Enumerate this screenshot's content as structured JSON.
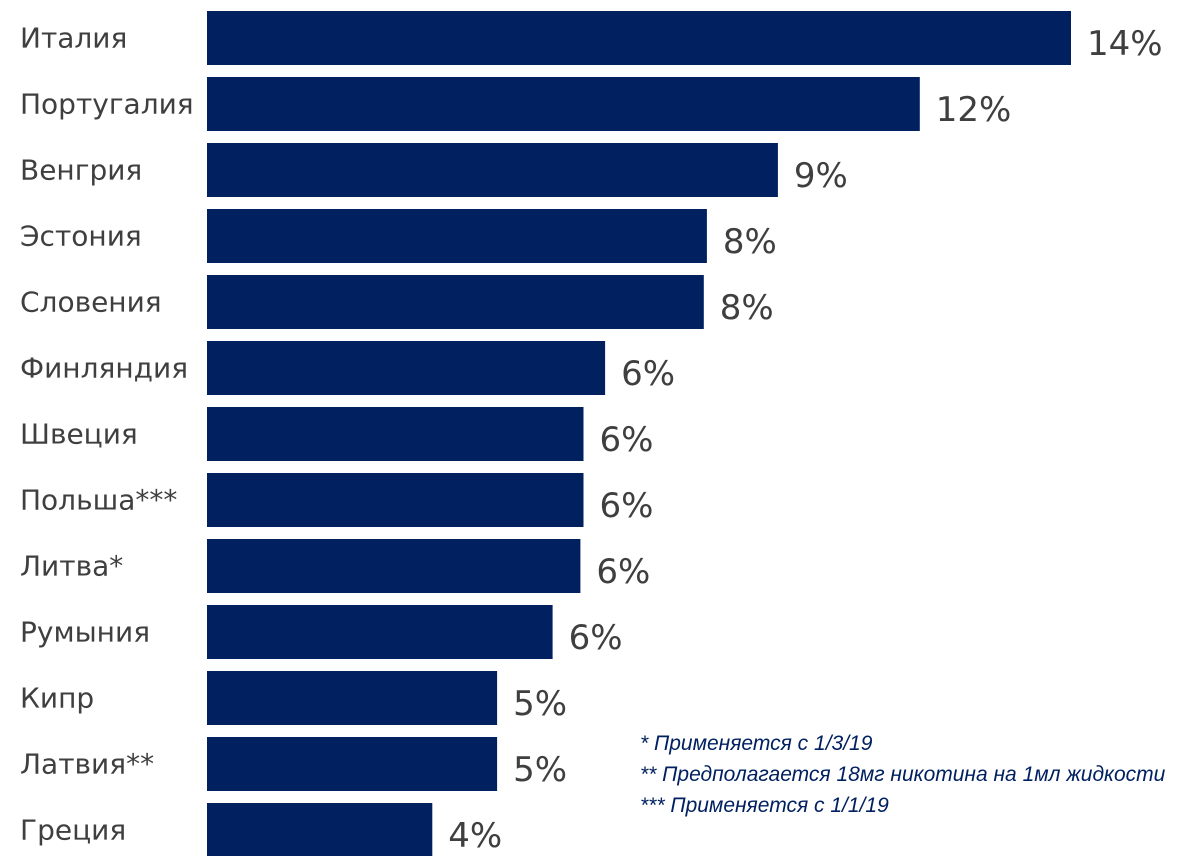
{
  "chart_data": {
    "type": "bar",
    "orientation": "horizontal",
    "categories": [
      "Италия",
      "Португалия",
      "Венгрия",
      "Эстония",
      "Словения",
      "Финляндия",
      "Швеция",
      "Польша***",
      "Литва*",
      "Румыния",
      "Кипр",
      "Латвия**",
      "Греция"
    ],
    "values": [
      14,
      12,
      9,
      8,
      8,
      6,
      6,
      6,
      6,
      6,
      5,
      5,
      4
    ],
    "plotted_values": [
      14.0,
      11.55,
      9.25,
      8.1,
      8.05,
      6.45,
      6.1,
      6.1,
      6.05,
      5.6,
      4.7,
      4.7,
      3.65
    ],
    "value_labels": [
      "14%",
      "12%",
      "9%",
      "8%",
      "8%",
      "6%",
      "6%",
      "6%",
      "6%",
      "6%",
      "5%",
      "5%",
      "4%"
    ],
    "bar_color": "#002060",
    "title": "",
    "xlabel": "",
    "ylabel": "",
    "grid": false,
    "legend": "none"
  },
  "footnotes": [
    "* Применяется с 1/3/19",
    "** Предполагается 18мг никотина на 1мл жидкости",
    "*** Применяется с 1/1/19"
  ],
  "colors": {
    "bar": "#002060",
    "label_text": "#3f3f3f",
    "footnote_text": "#002060"
  }
}
